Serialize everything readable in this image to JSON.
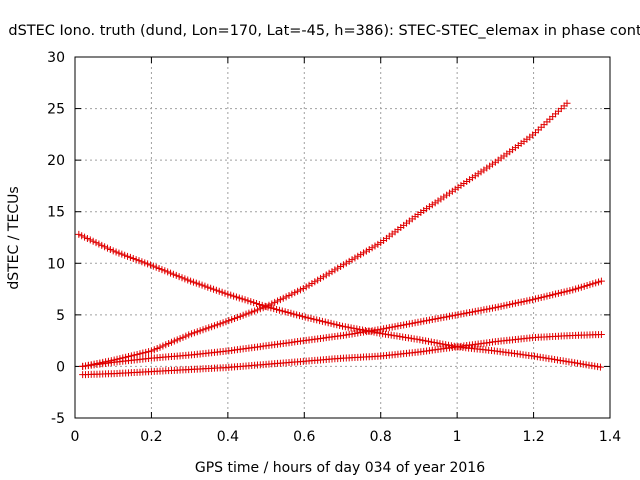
{
  "chart_data": {
    "type": "scatter",
    "title": "dSTEC Iono. truth (dund, Lon=170, Lat=-45, h=386): STEC-STEC_elemax in phase cont",
    "xlabel": "GPS time / hours of day 034 of year 2016",
    "ylabel": "dSTEC  / TECUs",
    "xlim": [
      0,
      1.4
    ],
    "ylim": [
      -5,
      30
    ],
    "x_ticks": [
      0,
      0.2,
      0.4,
      0.6,
      0.8,
      1,
      1.2,
      1.4
    ],
    "x_tick_labels": [
      "0",
      "0.2",
      "0.4",
      "0.6",
      "0.8",
      "1",
      "1.2",
      "1.4"
    ],
    "y_ticks": [
      -5,
      0,
      5,
      10,
      15,
      20,
      25,
      30
    ],
    "y_tick_labels": [
      "-5",
      "0",
      "5",
      "10",
      "15",
      "20",
      "25",
      "30"
    ],
    "grid": true,
    "marker": "plus",
    "color": "#e00000",
    "series": [
      {
        "x": [
          0.02,
          0.1,
          0.2,
          0.3,
          0.4,
          0.5,
          0.6,
          0.7,
          0.8,
          0.9,
          1.0,
          1.1,
          1.2,
          1.29
        ],
        "values": [
          0.0,
          0.6,
          1.5,
          3.1,
          4.4,
          5.8,
          7.6,
          9.8,
          12.0,
          14.8,
          17.3,
          19.8,
          22.5,
          25.6
        ]
      },
      {
        "x": [
          0.01,
          0.1,
          0.2,
          0.3,
          0.4,
          0.5,
          0.6,
          0.7,
          0.8,
          0.9,
          1.0,
          1.1,
          1.2,
          1.3,
          1.38
        ],
        "values": [
          12.8,
          11.2,
          9.8,
          8.3,
          7.0,
          5.8,
          4.8,
          3.9,
          3.2,
          2.6,
          1.9,
          1.5,
          1.0,
          0.4,
          -0.1
        ]
      },
      {
        "x": [
          0.02,
          0.1,
          0.2,
          0.3,
          0.4,
          0.5,
          0.6,
          0.7,
          0.8,
          0.9,
          1.0,
          1.1,
          1.2,
          1.3,
          1.38
        ],
        "values": [
          0.0,
          0.4,
          0.8,
          1.1,
          1.5,
          2.0,
          2.5,
          3.0,
          3.6,
          4.3,
          5.0,
          5.7,
          6.5,
          7.4,
          8.3
        ]
      },
      {
        "x": [
          0.02,
          0.1,
          0.2,
          0.3,
          0.4,
          0.5,
          0.6,
          0.7,
          0.8,
          0.9,
          1.0,
          1.1,
          1.2,
          1.3,
          1.38
        ],
        "values": [
          -0.8,
          -0.7,
          -0.5,
          -0.3,
          -0.1,
          0.2,
          0.5,
          0.8,
          1.0,
          1.4,
          1.9,
          2.4,
          2.8,
          3.0,
          3.1
        ]
      }
    ]
  }
}
